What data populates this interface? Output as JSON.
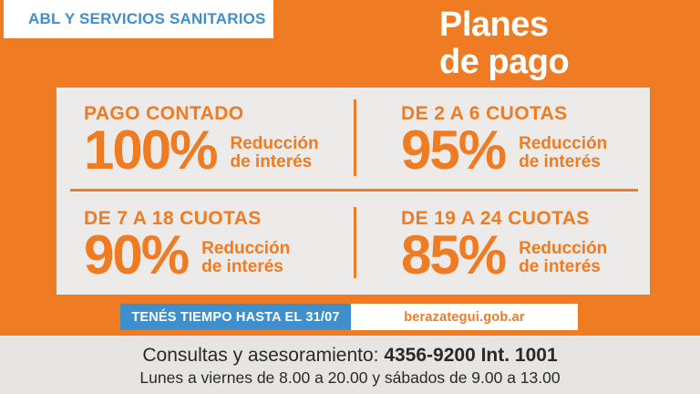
{
  "colors": {
    "orange": "#EF7B22",
    "blue": "#3D90CB",
    "panel_bg": "#ECEBE9",
    "footer_bg": "#E6E5E3",
    "white": "#FFFFFF",
    "text_dark": "#2B2926"
  },
  "header": {
    "tag_label": "ABL Y SERVICIOS SANITARIOS",
    "title_line1": "Planes",
    "title_line2": "de pago"
  },
  "plans": [
    {
      "label": "PAGO CONTADO",
      "percent": "100%",
      "caption_line1": "Reducción",
      "caption_line2": "de interés"
    },
    {
      "label": "DE 2 A 6 CUOTAS",
      "percent": "95%",
      "caption_line1": "Reducción",
      "caption_line2": "de interés"
    },
    {
      "label": "DE 7 A 18 CUOTAS",
      "percent": "90%",
      "caption_line1": "Reducción",
      "caption_line2": "de interés"
    },
    {
      "label": "DE 19 A 24 CUOTAS",
      "percent": "85%",
      "caption_line1": "Reducción",
      "caption_line2": "de interés"
    }
  ],
  "deadline": {
    "label": "TENÉS TIEMPO HASTA EL 31/07",
    "website": "berazategui.gob.ar"
  },
  "footer": {
    "contact_prefix": "Consultas y asesoramiento: ",
    "contact_phone": "4356-9200 Int. 1001",
    "hours": "Lunes a viernes de 8.00 a 20.00 y sábados de 9.00 a 13.00"
  }
}
